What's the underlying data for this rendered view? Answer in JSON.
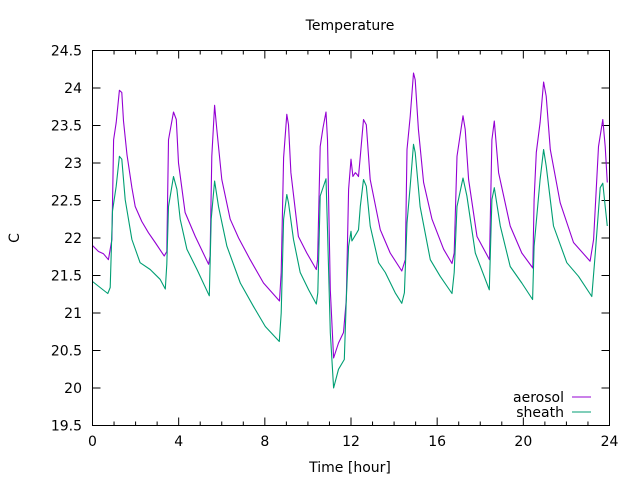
{
  "chart_data": {
    "type": "line",
    "title": "Temperature",
    "xlabel": "Time [hour]",
    "ylabel": "C",
    "xlim": [
      0,
      24
    ],
    "ylim": [
      19.5,
      24.5
    ],
    "xticks": [
      "0",
      "4",
      "8",
      "12",
      "16",
      "20",
      "24"
    ],
    "yticks": [
      "19.5",
      "20",
      "20.5",
      "21",
      "21.5",
      "22",
      "22.5",
      "23",
      "23.5",
      "24",
      "24.5"
    ],
    "grid": false,
    "legend_position": "bottom-right",
    "series": [
      {
        "name": "aerosol",
        "color": "#9400d3",
        "points": [
          [
            0,
            21.9
          ],
          [
            0.28,
            21.82
          ],
          [
            0.51,
            21.79
          ],
          [
            0.74,
            21.71
          ],
          [
            0.9,
            21.98
          ],
          [
            0.98,
            23.31
          ],
          [
            1.1,
            23.54
          ],
          [
            1.25,
            23.97
          ],
          [
            1.36,
            23.94
          ],
          [
            1.44,
            23.56
          ],
          [
            1.6,
            23.11
          ],
          [
            1.83,
            22.67
          ],
          [
            1.98,
            22.42
          ],
          [
            2.29,
            22.22
          ],
          [
            2.6,
            22.07
          ],
          [
            2.91,
            21.94
          ],
          [
            3.33,
            21.76
          ],
          [
            3.45,
            21.82
          ],
          [
            3.53,
            23.31
          ],
          [
            3.76,
            23.68
          ],
          [
            3.89,
            23.58
          ],
          [
            3.99,
            23.0
          ],
          [
            4.3,
            22.34
          ],
          [
            4.77,
            22.02
          ],
          [
            5.39,
            21.65
          ],
          [
            5.46,
            21.76
          ],
          [
            5.54,
            23.09
          ],
          [
            5.67,
            23.77
          ],
          [
            5.77,
            23.45
          ],
          [
            6.0,
            22.78
          ],
          [
            6.39,
            22.25
          ],
          [
            6.78,
            22.0
          ],
          [
            7.32,
            21.71
          ],
          [
            7.94,
            21.4
          ],
          [
            8.68,
            21.16
          ],
          [
            8.76,
            21.54
          ],
          [
            8.87,
            23.07
          ],
          [
            9.02,
            23.65
          ],
          [
            9.1,
            23.51
          ],
          [
            9.21,
            22.87
          ],
          [
            9.56,
            22.02
          ],
          [
            9.95,
            21.8
          ],
          [
            10.39,
            21.58
          ],
          [
            10.45,
            21.71
          ],
          [
            10.57,
            23.22
          ],
          [
            10.7,
            23.47
          ],
          [
            10.84,
            23.68
          ],
          [
            10.91,
            23.31
          ],
          [
            11.04,
            21.31
          ],
          [
            11.19,
            20.4
          ],
          [
            11.42,
            20.6
          ],
          [
            11.65,
            20.74
          ],
          [
            11.78,
            21.18
          ],
          [
            11.89,
            22.65
          ],
          [
            12.0,
            23.05
          ],
          [
            12.09,
            22.82
          ],
          [
            12.2,
            22.87
          ],
          [
            12.27,
            22.85
          ],
          [
            12.35,
            22.82
          ],
          [
            12.43,
            23.09
          ],
          [
            12.58,
            23.58
          ],
          [
            12.71,
            23.51
          ],
          [
            12.89,
            22.78
          ],
          [
            13.36,
            22.11
          ],
          [
            13.82,
            21.8
          ],
          [
            14.36,
            21.56
          ],
          [
            14.52,
            21.71
          ],
          [
            14.6,
            23.18
          ],
          [
            14.75,
            23.62
          ],
          [
            14.9,
            24.2
          ],
          [
            14.98,
            24.11
          ],
          [
            15.13,
            23.45
          ],
          [
            15.37,
            22.74
          ],
          [
            15.76,
            22.25
          ],
          [
            16.3,
            21.85
          ],
          [
            16.69,
            21.66
          ],
          [
            16.79,
            21.8
          ],
          [
            16.92,
            23.09
          ],
          [
            17.2,
            23.63
          ],
          [
            17.3,
            23.45
          ],
          [
            17.46,
            22.78
          ],
          [
            17.85,
            22.02
          ],
          [
            18.43,
            21.71
          ],
          [
            18.54,
            23.31
          ],
          [
            18.65,
            23.56
          ],
          [
            18.85,
            22.87
          ],
          [
            19.39,
            22.16
          ],
          [
            19.93,
            21.8
          ],
          [
            20.44,
            21.6
          ],
          [
            20.5,
            22.51
          ],
          [
            20.6,
            23.14
          ],
          [
            20.78,
            23.54
          ],
          [
            20.94,
            24.08
          ],
          [
            21.06,
            23.89
          ],
          [
            21.25,
            23.18
          ],
          [
            21.71,
            22.47
          ],
          [
            22.33,
            21.94
          ],
          [
            23.1,
            21.69
          ],
          [
            23.26,
            21.98
          ],
          [
            23.49,
            23.22
          ],
          [
            23.69,
            23.58
          ],
          [
            23.8,
            23.22
          ],
          [
            23.9,
            22.74
          ]
        ]
      },
      {
        "name": "sheath",
        "color": "#009e73",
        "points": [
          [
            0,
            21.42
          ],
          [
            0.44,
            21.32
          ],
          [
            0.71,
            21.26
          ],
          [
            0.82,
            21.34
          ],
          [
            0.93,
            22.36
          ],
          [
            1.1,
            22.69
          ],
          [
            1.25,
            23.09
          ],
          [
            1.36,
            23.05
          ],
          [
            1.52,
            22.51
          ],
          [
            1.83,
            21.98
          ],
          [
            2.21,
            21.67
          ],
          [
            2.68,
            21.58
          ],
          [
            3.14,
            21.45
          ],
          [
            3.38,
            21.32
          ],
          [
            3.45,
            21.65
          ],
          [
            3.53,
            22.42
          ],
          [
            3.76,
            22.82
          ],
          [
            3.92,
            22.65
          ],
          [
            4.07,
            22.25
          ],
          [
            4.38,
            21.85
          ],
          [
            4.85,
            21.58
          ],
          [
            5.42,
            21.23
          ],
          [
            5.51,
            22.25
          ],
          [
            5.67,
            22.76
          ],
          [
            5.85,
            22.42
          ],
          [
            6.24,
            21.89
          ],
          [
            6.86,
            21.4
          ],
          [
            7.47,
            21.09
          ],
          [
            8.02,
            20.82
          ],
          [
            8.67,
            20.62
          ],
          [
            8.76,
            21.0
          ],
          [
            8.87,
            22.25
          ],
          [
            9.02,
            22.58
          ],
          [
            9.1,
            22.47
          ],
          [
            9.33,
            21.98
          ],
          [
            9.64,
            21.54
          ],
          [
            10.03,
            21.31
          ],
          [
            10.39,
            21.12
          ],
          [
            10.46,
            21.27
          ],
          [
            10.57,
            22.56
          ],
          [
            10.84,
            22.79
          ],
          [
            10.91,
            22.11
          ],
          [
            11.04,
            20.74
          ],
          [
            11.19,
            20.0
          ],
          [
            11.42,
            20.25
          ],
          [
            11.69,
            20.38
          ],
          [
            11.78,
            21.18
          ],
          [
            11.89,
            21.89
          ],
          [
            12.0,
            22.09
          ],
          [
            12.04,
            21.96
          ],
          [
            12.27,
            22.07
          ],
          [
            12.35,
            22.11
          ],
          [
            12.43,
            22.42
          ],
          [
            12.58,
            22.78
          ],
          [
            12.71,
            22.69
          ],
          [
            12.89,
            22.16
          ],
          [
            13.28,
            21.67
          ],
          [
            13.59,
            21.54
          ],
          [
            14.05,
            21.27
          ],
          [
            14.36,
            21.13
          ],
          [
            14.48,
            21.27
          ],
          [
            14.6,
            22.2
          ],
          [
            14.75,
            22.69
          ],
          [
            14.9,
            23.25
          ],
          [
            14.98,
            23.14
          ],
          [
            15.21,
            22.42
          ],
          [
            15.68,
            21.71
          ],
          [
            16.14,
            21.49
          ],
          [
            16.69,
            21.26
          ],
          [
            16.79,
            21.54
          ],
          [
            16.92,
            22.42
          ],
          [
            17.2,
            22.8
          ],
          [
            17.38,
            22.56
          ],
          [
            17.77,
            21.8
          ],
          [
            18.42,
            21.31
          ],
          [
            18.54,
            22.51
          ],
          [
            18.65,
            22.67
          ],
          [
            18.93,
            22.16
          ],
          [
            19.39,
            21.62
          ],
          [
            19.93,
            21.4
          ],
          [
            20.43,
            21.18
          ],
          [
            20.5,
            21.89
          ],
          [
            20.78,
            22.78
          ],
          [
            20.94,
            23.18
          ],
          [
            21.06,
            22.96
          ],
          [
            21.4,
            22.16
          ],
          [
            22.02,
            21.67
          ],
          [
            22.56,
            21.49
          ],
          [
            23.18,
            21.22
          ],
          [
            23.34,
            21.8
          ],
          [
            23.57,
            22.67
          ],
          [
            23.69,
            22.73
          ],
          [
            23.8,
            22.42
          ],
          [
            23.9,
            22.16
          ]
        ]
      }
    ]
  }
}
